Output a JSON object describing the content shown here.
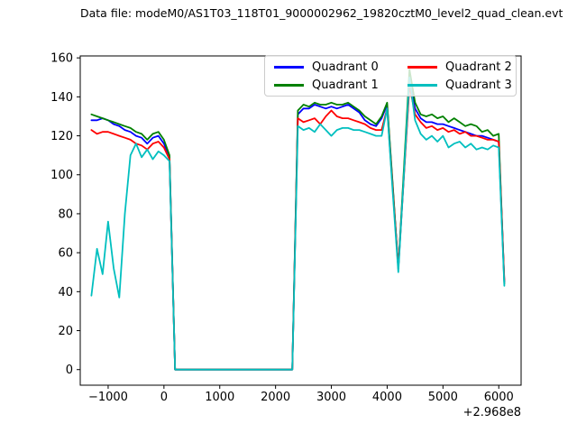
{
  "figure": {
    "title": "Data file: modeM0/AS1T03_118T01_9000002962_19820cztM0_level2_quad_clean.evt",
    "background": "#ffffff"
  },
  "chart_data": {
    "type": "line",
    "title": "Data file: modeM0/AS1T03_118T01_9000002962_19820cztM0_level2_quad_clean.evt",
    "xlabel": "",
    "ylabel": "",
    "x_offset_label": "+2.968e8",
    "grid": false,
    "xlim": [
      -1500,
      6400
    ],
    "ylim": [
      -8,
      161
    ],
    "x_ticks": [
      -1000,
      0,
      1000,
      2000,
      3000,
      4000,
      5000,
      6000
    ],
    "x_tick_labels": [
      "−1000",
      "0",
      "1000",
      "2000",
      "3000",
      "4000",
      "5000",
      "6000"
    ],
    "y_ticks": [
      0,
      20,
      40,
      60,
      80,
      100,
      120,
      140,
      160
    ],
    "y_tick_labels": [
      "0",
      "20",
      "40",
      "60",
      "80",
      "100",
      "120",
      "140",
      "160"
    ],
    "legend": {
      "position": "upper center",
      "columns": 2,
      "fill_order": "column-major"
    },
    "x": [
      -1300,
      -1200,
      -1100,
      -1000,
      -900,
      -800,
      -700,
      -600,
      -500,
      -400,
      -300,
      -200,
      -100,
      0,
      100,
      200,
      300,
      400,
      500,
      600,
      700,
      800,
      900,
      1000,
      1100,
      1200,
      1300,
      1400,
      1500,
      1600,
      1700,
      1800,
      1900,
      2000,
      2100,
      2200,
      2300,
      2400,
      2500,
      2600,
      2700,
      2800,
      2900,
      3000,
      3100,
      3200,
      3300,
      3400,
      3500,
      3600,
      3700,
      3800,
      3900,
      4000,
      4100,
      4200,
      4300,
      4400,
      4500,
      4600,
      4700,
      4800,
      4900,
      5000,
      5100,
      5200,
      5300,
      5400,
      5500,
      5600,
      5700,
      5800,
      5900,
      6000,
      6100
    ],
    "series": [
      {
        "name": "Quadrant 0",
        "color": "#0000ff",
        "values": [
          128,
          128,
          129,
          128,
          126,
          125,
          123,
          122,
          120,
          119,
          116,
          119,
          120,
          116,
          109,
          0,
          0,
          0,
          0,
          0,
          0,
          0,
          0,
          0,
          0,
          0,
          0,
          0,
          0,
          0,
          0,
          0,
          0,
          0,
          0,
          0,
          0,
          131,
          134,
          134,
          136,
          135,
          134,
          135,
          134,
          135,
          136,
          134,
          132,
          128,
          126,
          125,
          129,
          136,
          94,
          52,
          100,
          148,
          134,
          129,
          127,
          127,
          126,
          126,
          125,
          124,
          123,
          122,
          121,
          120,
          120,
          119,
          118,
          117,
          45
        ]
      },
      {
        "name": "Quadrant 1",
        "color": "#008000",
        "values": [
          131,
          130,
          129,
          128,
          127,
          126,
          125,
          124,
          122,
          121,
          118,
          121,
          122,
          118,
          110,
          0,
          0,
          0,
          0,
          0,
          0,
          0,
          0,
          0,
          0,
          0,
          0,
          0,
          0,
          0,
          0,
          0,
          0,
          0,
          0,
          0,
          0,
          133,
          136,
          135,
          137,
          136,
          136,
          137,
          136,
          136,
          137,
          135,
          133,
          130,
          128,
          126,
          130,
          137,
          95,
          52,
          103,
          154,
          137,
          131,
          130,
          131,
          129,
          130,
          127,
          129,
          127,
          125,
          126,
          125,
          122,
          123,
          120,
          121,
          44
        ]
      },
      {
        "name": "Quadrant 2",
        "color": "#ff0000",
        "values": [
          123,
          121,
          122,
          122,
          121,
          120,
          119,
          118,
          116,
          115,
          113,
          116,
          117,
          114,
          108,
          0,
          0,
          0,
          0,
          0,
          0,
          0,
          0,
          0,
          0,
          0,
          0,
          0,
          0,
          0,
          0,
          0,
          0,
          0,
          0,
          0,
          0,
          129,
          127,
          128,
          129,
          126,
          130,
          133,
          130,
          129,
          129,
          128,
          127,
          126,
          124,
          123,
          123,
          134,
          93,
          52,
          99,
          146,
          131,
          127,
          124,
          125,
          123,
          124,
          122,
          123,
          121,
          122,
          120,
          120,
          119,
          118,
          118,
          117,
          46
        ]
      },
      {
        "name": "Quadrant 3",
        "color": "#00bfbf",
        "values": [
          38,
          62,
          49,
          76,
          52,
          37,
          80,
          110,
          116,
          109,
          113,
          108,
          112,
          110,
          107,
          0,
          0,
          0,
          0,
          0,
          0,
          0,
          0,
          0,
          0,
          0,
          0,
          0,
          0,
          0,
          0,
          0,
          0,
          0,
          0,
          0,
          0,
          125,
          123,
          124,
          122,
          126,
          123,
          120,
          123,
          124,
          124,
          123,
          123,
          122,
          121,
          120,
          120,
          134,
          91,
          50,
          100,
          150,
          128,
          121,
          118,
          120,
          117,
          120,
          114,
          116,
          117,
          114,
          116,
          113,
          114,
          113,
          115,
          114,
          43
        ]
      }
    ]
  }
}
